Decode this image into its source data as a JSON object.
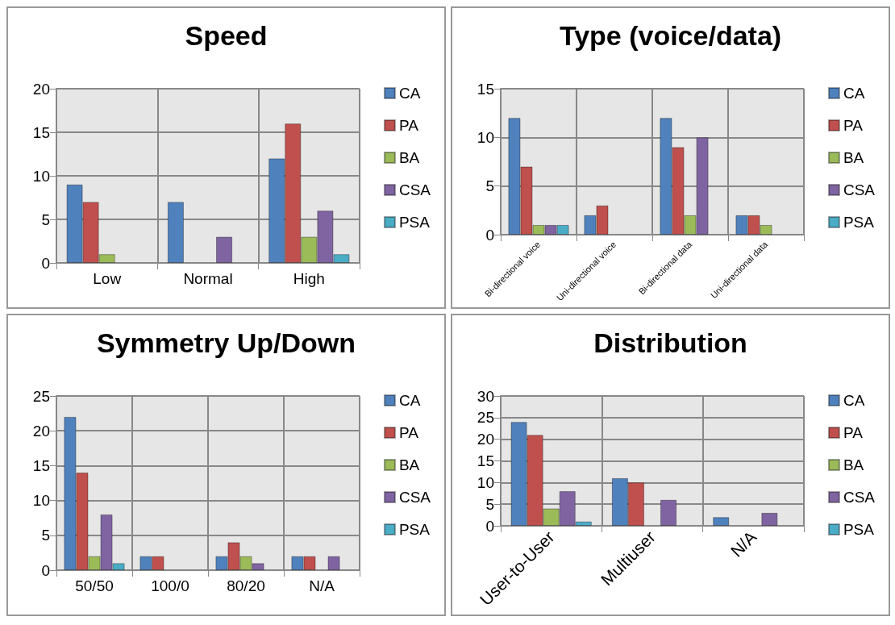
{
  "chart_data": [
    {
      "type": "bar",
      "title": "Speed",
      "categories": [
        "Low",
        "Normal",
        "High"
      ],
      "series": [
        {
          "name": "CA",
          "color": "#4f81bd",
          "values": [
            9,
            7,
            12
          ]
        },
        {
          "name": "PA",
          "color": "#c0504d",
          "values": [
            7,
            0,
            16
          ]
        },
        {
          "name": "BA",
          "color": "#9bbb59",
          "values": [
            1,
            0,
            3
          ]
        },
        {
          "name": "CSA",
          "color": "#8064a2",
          "values": [
            0,
            3,
            6
          ]
        },
        {
          "name": "PSA",
          "color": "#4bacc6",
          "values": [
            0,
            0,
            1
          ]
        }
      ],
      "ylim": [
        0,
        20
      ],
      "yticks": [
        0,
        5,
        10,
        15,
        20
      ],
      "grid": true,
      "legend": "right"
    },
    {
      "type": "bar",
      "title": "Type (voice/data)",
      "categories": [
        "Bi-directional voice",
        "Uni-directional voice",
        "Bi-directional data",
        "Uni-directional data"
      ],
      "series": [
        {
          "name": "CA",
          "color": "#4f81bd",
          "values": [
            12,
            2,
            12,
            2
          ]
        },
        {
          "name": "PA",
          "color": "#c0504d",
          "values": [
            7,
            3,
            9,
            2
          ]
        },
        {
          "name": "BA",
          "color": "#9bbb59",
          "values": [
            1,
            0,
            2,
            1
          ]
        },
        {
          "name": "CSA",
          "color": "#8064a2",
          "values": [
            1,
            0,
            10,
            0
          ]
        },
        {
          "name": "PSA",
          "color": "#4bacc6",
          "values": [
            1,
            0,
            0,
            0
          ]
        }
      ],
      "ylim": [
        0,
        15
      ],
      "yticks": [
        0,
        5,
        10,
        15
      ],
      "grid": true,
      "legend": "right"
    },
    {
      "type": "bar",
      "title": "Symmetry Up/Down",
      "categories": [
        "50/50",
        "100/0",
        "80/20",
        "N/A"
      ],
      "series": [
        {
          "name": "CA",
          "color": "#4f81bd",
          "values": [
            22,
            2,
            2,
            2
          ]
        },
        {
          "name": "PA",
          "color": "#c0504d",
          "values": [
            14,
            2,
            4,
            2
          ]
        },
        {
          "name": "BA",
          "color": "#9bbb59",
          "values": [
            2,
            0,
            2,
            0
          ]
        },
        {
          "name": "CSA",
          "color": "#8064a2",
          "values": [
            8,
            0,
            1,
            2
          ]
        },
        {
          "name": "PSA",
          "color": "#4bacc6",
          "values": [
            1,
            0,
            0,
            0
          ]
        }
      ],
      "ylim": [
        0,
        25
      ],
      "yticks": [
        0,
        5,
        10,
        15,
        20,
        25
      ],
      "grid": true,
      "legend": "right"
    },
    {
      "type": "bar",
      "title": "Distribution",
      "categories": [
        "User-to-User",
        "Multiuser",
        "N/A"
      ],
      "series": [
        {
          "name": "CA",
          "color": "#4f81bd",
          "values": [
            24,
            11,
            2
          ]
        },
        {
          "name": "PA",
          "color": "#c0504d",
          "values": [
            21,
            10,
            0
          ]
        },
        {
          "name": "BA",
          "color": "#9bbb59",
          "values": [
            4,
            0,
            0
          ]
        },
        {
          "name": "CSA",
          "color": "#8064a2",
          "values": [
            8,
            6,
            3
          ]
        },
        {
          "name": "PSA",
          "color": "#4bacc6",
          "values": [
            1,
            0,
            0
          ]
        }
      ],
      "ylim": [
        0,
        30
      ],
      "yticks": [
        0,
        5,
        10,
        15,
        20,
        25,
        30
      ],
      "grid": true,
      "legend": "right"
    }
  ]
}
